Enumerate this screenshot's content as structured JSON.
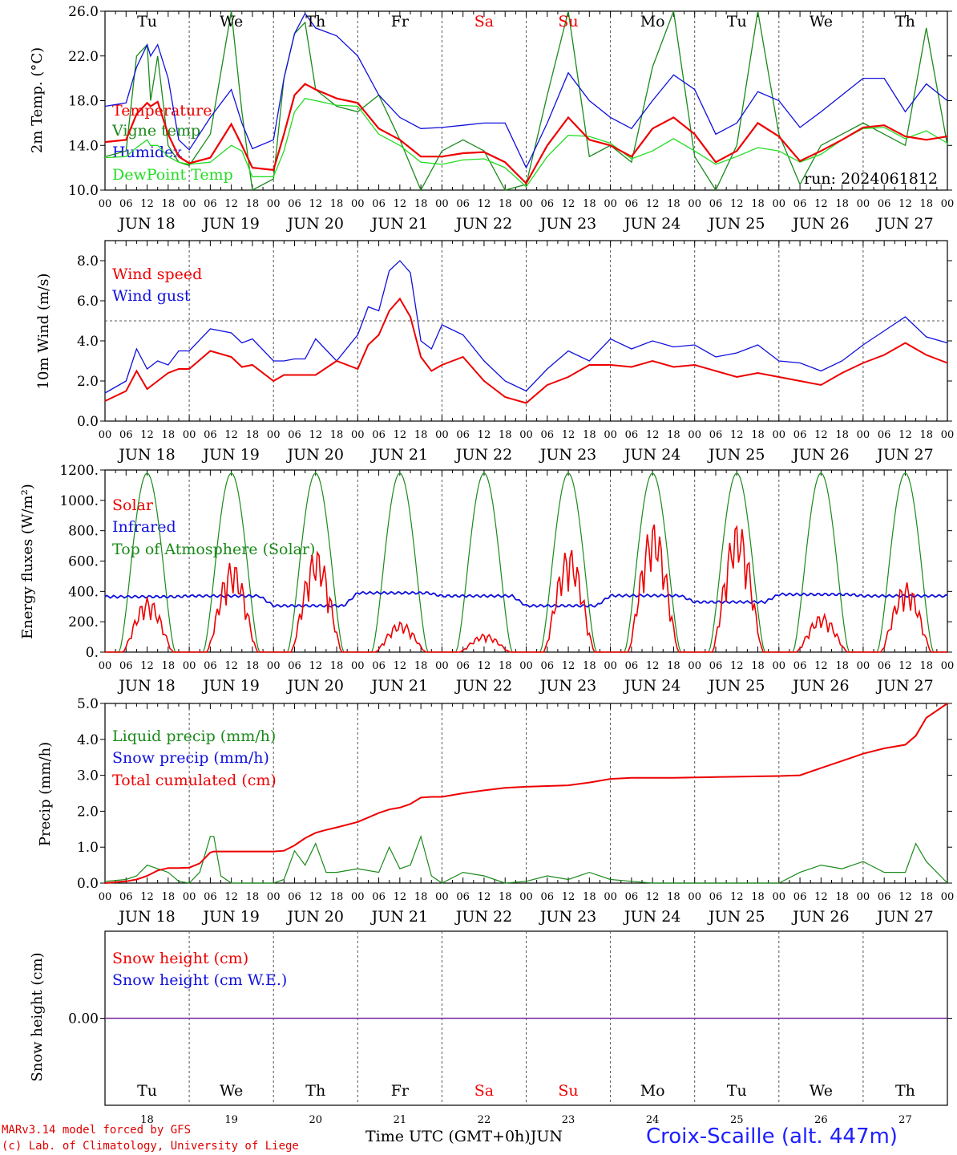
{
  "run_label": "run: 2024061812",
  "days": [
    "Tu",
    "We",
    "Th",
    "Fr",
    "Sa",
    "Su",
    "Mo",
    "Tu",
    "We",
    "Th"
  ],
  "weekend_days": [
    "Sa",
    "Su"
  ],
  "dates": [
    "JUN 18",
    "JUN 19",
    "JUN 20",
    "JUN 21",
    "JUN 22",
    "JUN 23",
    "JUN 24",
    "JUN 25",
    "JUN 26",
    "JUN 27"
  ],
  "day_numbers": [
    "18",
    "19",
    "20",
    "21",
    "22",
    "23",
    "24",
    "25",
    "26",
    "27"
  ],
  "hour_labels": [
    "00",
    "06",
    "12",
    "18"
  ],
  "footer": {
    "model": "MARv3.14 model forced by GFS",
    "lab": "(c) Lab. of Climatology, University of Liege",
    "axis": "Time UTC (GMT+0h)",
    "month": "JUN",
    "station": "Croix-Scaille (alt. 447m)"
  },
  "colors": {
    "red": "#ee0000",
    "green": "#1a8a1a",
    "blue": "#1010dd",
    "lightgreen": "#22dd22",
    "purple": "#7a2a9a"
  },
  "chart_data": [
    {
      "type": "line",
      "ylabel": "2m Temp. (°C)",
      "ylim": [
        10,
        26
      ],
      "yticks": [
        "10.0",
        "14.0",
        "18.0",
        "22.0",
        "26.0"
      ],
      "x_hours": [
        0,
        6,
        9,
        12,
        13,
        15,
        18,
        21,
        24,
        30,
        36,
        39,
        42,
        48,
        51,
        54,
        57,
        60,
        66,
        72,
        78,
        84,
        90,
        96,
        102,
        108,
        114,
        120,
        126,
        132,
        138,
        144,
        150,
        156,
        162,
        168,
        174,
        180,
        186,
        192,
        198,
        204,
        210,
        216,
        222,
        228,
        234,
        240
      ],
      "series": [
        {
          "name": "Temperature",
          "color": "red",
          "values": [
            14.3,
            14.5,
            16.8,
            17.8,
            17.5,
            17.9,
            15.0,
            13.0,
            12.4,
            12.9,
            15.9,
            14.0,
            12.0,
            11.8,
            15.0,
            18.5,
            19.5,
            19.0,
            18.2,
            17.8,
            15.5,
            14.5,
            13.0,
            13.0,
            13.3,
            13.4,
            12.5,
            10.6,
            14.0,
            16.5,
            14.5,
            14.0,
            13.0,
            15.5,
            16.5,
            15.0,
            12.5,
            13.5,
            16.0,
            14.8,
            12.6,
            13.5,
            14.5,
            15.6,
            15.8,
            14.8,
            14.5,
            14.8
          ]
        },
        {
          "name": "Vigne temp",
          "color": "green",
          "values": [
            13.0,
            13.5,
            22.0,
            23.0,
            18.0,
            22.0,
            14.0,
            12.5,
            12.2,
            15.0,
            26.0,
            17.0,
            10.0,
            11.0,
            20.0,
            24.0,
            25.0,
            19.0,
            17.5,
            17.0,
            18.5,
            14.5,
            10.0,
            13.5,
            14.5,
            13.5,
            10.0,
            10.5,
            18.5,
            26.0,
            13.0,
            14.0,
            12.5,
            21.0,
            26.0,
            13.0,
            10.0,
            14.0,
            26.0,
            15.0,
            10.5,
            14.0,
            15.0,
            16.0,
            15.0,
            14.0,
            24.5,
            14.0
          ]
        },
        {
          "name": "Humidex",
          "color": "blue",
          "values": [
            17.5,
            17.8,
            21.0,
            23.0,
            22.0,
            23.0,
            20.0,
            14.5,
            13.6,
            16.5,
            19.0,
            16.0,
            13.7,
            14.5,
            20.0,
            24.0,
            25.8,
            24.5,
            23.8,
            22.0,
            18.5,
            16.5,
            15.5,
            15.6,
            15.8,
            16.0,
            16.0,
            12.0,
            16.0,
            20.5,
            18.0,
            16.5,
            15.5,
            18.0,
            20.3,
            19.0,
            15.0,
            16.0,
            18.8,
            18.0,
            15.6,
            17.0,
            18.5,
            20.0,
            20.0,
            17.0,
            19.5,
            18.0
          ]
        },
        {
          "name": "DewPoint Temp",
          "color": "lightgreen",
          "values": [
            12.9,
            13.0,
            13.8,
            14.5,
            14.0,
            14.0,
            13.0,
            12.5,
            12.3,
            12.5,
            14.0,
            13.5,
            11.2,
            11.2,
            13.5,
            17.0,
            18.2,
            18.0,
            17.6,
            17.5,
            15.0,
            14.0,
            12.5,
            12.3,
            12.7,
            12.8,
            12.0,
            10.3,
            13.0,
            14.9,
            14.8,
            14.2,
            12.8,
            13.5,
            14.6,
            13.5,
            12.3,
            13.0,
            13.8,
            13.5,
            12.5,
            13.2,
            14.5,
            15.5,
            15.6,
            14.6,
            15.3,
            14.2
          ]
        }
      ]
    },
    {
      "type": "line",
      "ylabel": "10m Wind (m/s)",
      "ylim": [
        0,
        9
      ],
      "yticks": [
        "0.0",
        "2.0",
        "4.0",
        "6.0",
        "8.0"
      ],
      "reference_line": 5,
      "x_hours": [
        0,
        6,
        9,
        12,
        15,
        18,
        21,
        24,
        30,
        36,
        39,
        42,
        48,
        51,
        54,
        57,
        60,
        66,
        72,
        75,
        78,
        81,
        84,
        87,
        90,
        93,
        96,
        102,
        108,
        114,
        120,
        126,
        132,
        138,
        144,
        150,
        156,
        162,
        168,
        174,
        180,
        186,
        192,
        198,
        204,
        210,
        216,
        222,
        228,
        234,
        240
      ],
      "series": [
        {
          "name": "Wind speed",
          "color": "red",
          "values": [
            1.0,
            1.5,
            2.5,
            1.6,
            2.0,
            2.4,
            2.6,
            2.6,
            3.5,
            3.2,
            2.7,
            2.8,
            2.0,
            2.3,
            2.3,
            2.3,
            2.3,
            3.0,
            2.6,
            3.8,
            4.3,
            5.5,
            6.1,
            5.2,
            3.2,
            2.5,
            2.8,
            3.2,
            2.0,
            1.2,
            0.9,
            1.8,
            2.2,
            2.8,
            2.8,
            2.7,
            3.0,
            2.7,
            2.8,
            2.5,
            2.2,
            2.4,
            2.2,
            2.0,
            1.8,
            2.4,
            2.9,
            3.3,
            3.9,
            3.3,
            2.9
          ]
        },
        {
          "name": "Wind gust",
          "color": "blue",
          "values": [
            1.4,
            2.0,
            3.6,
            2.6,
            3.0,
            2.8,
            3.5,
            3.5,
            4.6,
            4.4,
            3.9,
            4.1,
            3.0,
            3.0,
            3.1,
            3.1,
            4.1,
            3.0,
            4.3,
            5.7,
            5.5,
            7.5,
            8.0,
            7.4,
            4.0,
            3.6,
            4.8,
            4.3,
            3.0,
            2.0,
            1.5,
            2.6,
            3.5,
            3.0,
            4.1,
            3.6,
            4.0,
            3.7,
            3.8,
            3.2,
            3.4,
            3.8,
            3.0,
            2.9,
            2.5,
            3.0,
            3.8,
            4.5,
            5.2,
            4.2,
            3.9
          ]
        }
      ]
    },
    {
      "type": "line",
      "ylabel": "Energy fluxes (W/m²)",
      "ylim": [
        0,
        1200
      ],
      "yticks": [
        "0.",
        "200.",
        "400.",
        "600.",
        "800.",
        "1000.",
        "1200."
      ],
      "solar_peak_by_day": [
        360,
        600,
        680,
        200,
        120,
        690,
        860,
        860,
        250,
        460
      ],
      "infrared_by_day": [
        365,
        370,
        305,
        390,
        370,
        305,
        372,
        330,
        380,
        370
      ],
      "toa_peak": 1180,
      "series": [
        {
          "name": "Solar",
          "color": "red"
        },
        {
          "name": "Infrared",
          "color": "blue"
        },
        {
          "name": "Top of Atmosphere (Solar)",
          "color": "green"
        }
      ]
    },
    {
      "type": "line",
      "ylabel": "Precip (mm/h)",
      "ylim": [
        0,
        5
      ],
      "yticks": [
        "0.0",
        "1.0",
        "2.0",
        "3.0",
        "4.0",
        "5.0"
      ],
      "x_hours": [
        0,
        6,
        9,
        12,
        15,
        18,
        21,
        24,
        27,
        30,
        31,
        33,
        36,
        42,
        48,
        51,
        54,
        57,
        60,
        63,
        66,
        72,
        78,
        81,
        84,
        87,
        90,
        93,
        96,
        102,
        108,
        114,
        120,
        126,
        132,
        138,
        144,
        150,
        156,
        162,
        168,
        174,
        180,
        186,
        192,
        198,
        204,
        210,
        216,
        222,
        228,
        231,
        234,
        240
      ],
      "series": [
        {
          "name": "Liquid precip (mm/h)",
          "color": "green",
          "values": [
            0.05,
            0.1,
            0.2,
            0.5,
            0.4,
            0.3,
            0.05,
            0,
            0.3,
            1.3,
            1.3,
            0.2,
            0,
            0,
            0,
            0.1,
            0.9,
            0.5,
            1.1,
            0.3,
            0.3,
            0.4,
            0.3,
            1.0,
            0.4,
            0.5,
            1.3,
            0.2,
            0,
            0.3,
            0.2,
            0,
            0.05,
            0.2,
            0.1,
            0.3,
            0.1,
            0.05,
            0,
            0,
            0,
            0,
            0,
            0,
            0,
            0.3,
            0.5,
            0.4,
            0.6,
            0.3,
            0.3,
            1.1,
            0.6,
            0
          ]
        },
        {
          "name": "Snow precip (mm/h)",
          "color": "blue",
          "values": []
        },
        {
          "name": "Total cumulated (cm)",
          "color": "red",
          "values": [
            0,
            0.05,
            0.1,
            0.2,
            0.35,
            0.42,
            0.42,
            0.43,
            0.55,
            0.85,
            0.88,
            0.88,
            0.88,
            0.88,
            0.88,
            0.9,
            1.05,
            1.25,
            1.4,
            1.48,
            1.55,
            1.7,
            1.95,
            2.05,
            2.1,
            2.2,
            2.38,
            2.4,
            2.4,
            2.5,
            2.58,
            2.65,
            2.68,
            2.7,
            2.72,
            2.8,
            2.9,
            2.93,
            2.93,
            2.93,
            2.94,
            2.95,
            2.96,
            2.97,
            2.98,
            3.0,
            3.2,
            3.4,
            3.6,
            3.75,
            3.85,
            4.1,
            4.6,
            5.0
          ]
        }
      ]
    },
    {
      "type": "line",
      "ylabel": "Snow height (cm)",
      "yticks": [
        "0.00"
      ],
      "series": [
        {
          "name": "Snow height (cm)",
          "color": "red",
          "values": [
            0,
            0
          ]
        },
        {
          "name": "Snow height (cm W.E.)",
          "color": "blue",
          "values": [
            0,
            0
          ]
        }
      ]
    }
  ]
}
